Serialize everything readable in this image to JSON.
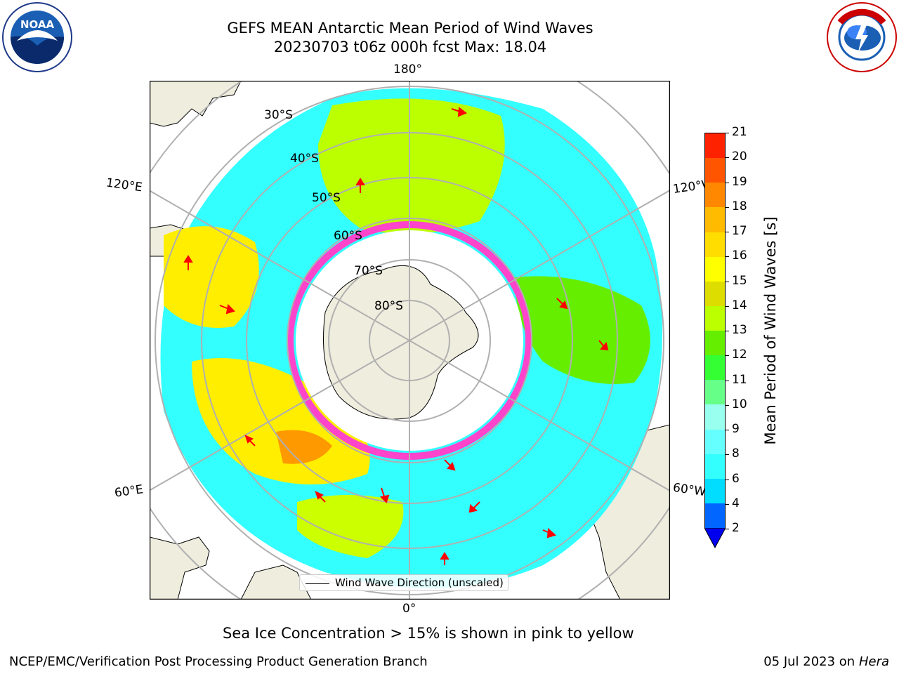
{
  "header": {
    "title_line1": "GEFS MEAN Antarctic Mean Period of Wind Waves",
    "title_line2": "20230703 t06z 000h fcst   Max: 18.04"
  },
  "logos": {
    "left": "NOAA",
    "left_ring": "NATIONAL OCEANIC AND ATMOSPHERIC ADMINISTRATION · U.S. DEPARTMENT OF COMMERCE",
    "right_ring": "NATIONAL WEATHER SERVICE"
  },
  "map": {
    "longitude_labels": {
      "top": "180°",
      "bottom": "0°",
      "upper_left": "120°E",
      "upper_right": "120°W",
      "lower_left": "60°E",
      "lower_right": "60°W"
    },
    "latitude_labels": [
      "30°S",
      "40°S",
      "50°S",
      "60°S",
      "70°S",
      "80°S"
    ],
    "legend_label": "Wind Wave Direction (unscaled)"
  },
  "colorbar": {
    "label": "Mean Period of Wind Waves [s]",
    "ticks": [
      "2",
      "4",
      "6",
      "8",
      "9",
      "10",
      "11",
      "12",
      "13",
      "14",
      "15",
      "16",
      "17",
      "18",
      "19",
      "20",
      "21"
    ],
    "colors": [
      "#0066ff",
      "#00ddff",
      "#33ffff",
      "#66ffff",
      "#99ffee",
      "#66ff88",
      "#33ff33",
      "#66ee00",
      "#bbff00",
      "#dddd00",
      "#ffff00",
      "#ffdd00",
      "#ffbb00",
      "#ff8800",
      "#ff5500",
      "#ff2200",
      "#ff0000"
    ],
    "under_color": "#0000ee"
  },
  "footer": {
    "note": "Sea Ice Concentration > 15% is shown in pink to yellow",
    "left": "NCEP/EMC/Verification Post Processing Product Generation Branch",
    "right_date": "05 Jul 2023 on ",
    "right_machine": "Hera"
  }
}
